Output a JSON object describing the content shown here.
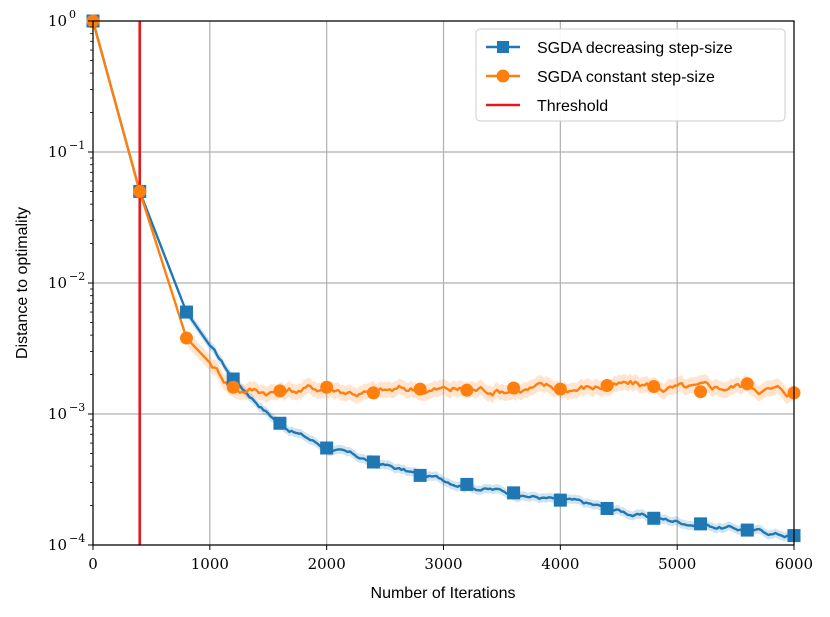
{
  "chart_data": {
    "type": "line",
    "xlabel": "Number of Iterations",
    "ylabel": "Distance to optimality",
    "xlim": [
      0,
      6000
    ],
    "ylim": [
      0.0001,
      1
    ],
    "yscale": "log",
    "grid": true,
    "legend_position": "top-right",
    "x_ticks": [
      "0",
      "1000",
      "2000",
      "3000",
      "4000",
      "5000",
      "6000"
    ],
    "y_ticks": [
      {
        "base": "10",
        "exp": "0"
      },
      {
        "base": "10",
        "exp": "−1"
      },
      {
        "base": "10",
        "exp": "−2"
      },
      {
        "base": "10",
        "exp": "−3"
      },
      {
        "base": "10",
        "exp": "−4"
      }
    ],
    "threshold": {
      "name": "Threshold",
      "x": 400,
      "color": "#e41a1c"
    },
    "series": [
      {
        "name": "SGDA decreasing step-size",
        "color": "#1f77b4",
        "marker": "square",
        "x": [
          0,
          400,
          800,
          1200,
          1600,
          2000,
          2400,
          2800,
          3200,
          3600,
          4000,
          4400,
          4800,
          5200,
          5600,
          6000
        ],
        "values": [
          1.0,
          0.05,
          0.006,
          0.00185,
          0.00085,
          0.00055,
          0.00043,
          0.00034,
          0.00029,
          0.00025,
          0.00022,
          0.00019,
          0.00016,
          0.000145,
          0.00013,
          0.000118
        ]
      },
      {
        "name": "SGDA constant step-size",
        "color": "#ff7f0e",
        "marker": "circle",
        "x": [
          0,
          400,
          800,
          1200,
          1600,
          2000,
          2400,
          2800,
          3200,
          3600,
          4000,
          4400,
          4800,
          5200,
          5600,
          6000
        ],
        "values": [
          1.0,
          0.05,
          0.0038,
          0.0016,
          0.0015,
          0.0016,
          0.00145,
          0.00155,
          0.00152,
          0.00158,
          0.00155,
          0.00165,
          0.00162,
          0.00148,
          0.0017,
          0.00145
        ]
      }
    ]
  }
}
